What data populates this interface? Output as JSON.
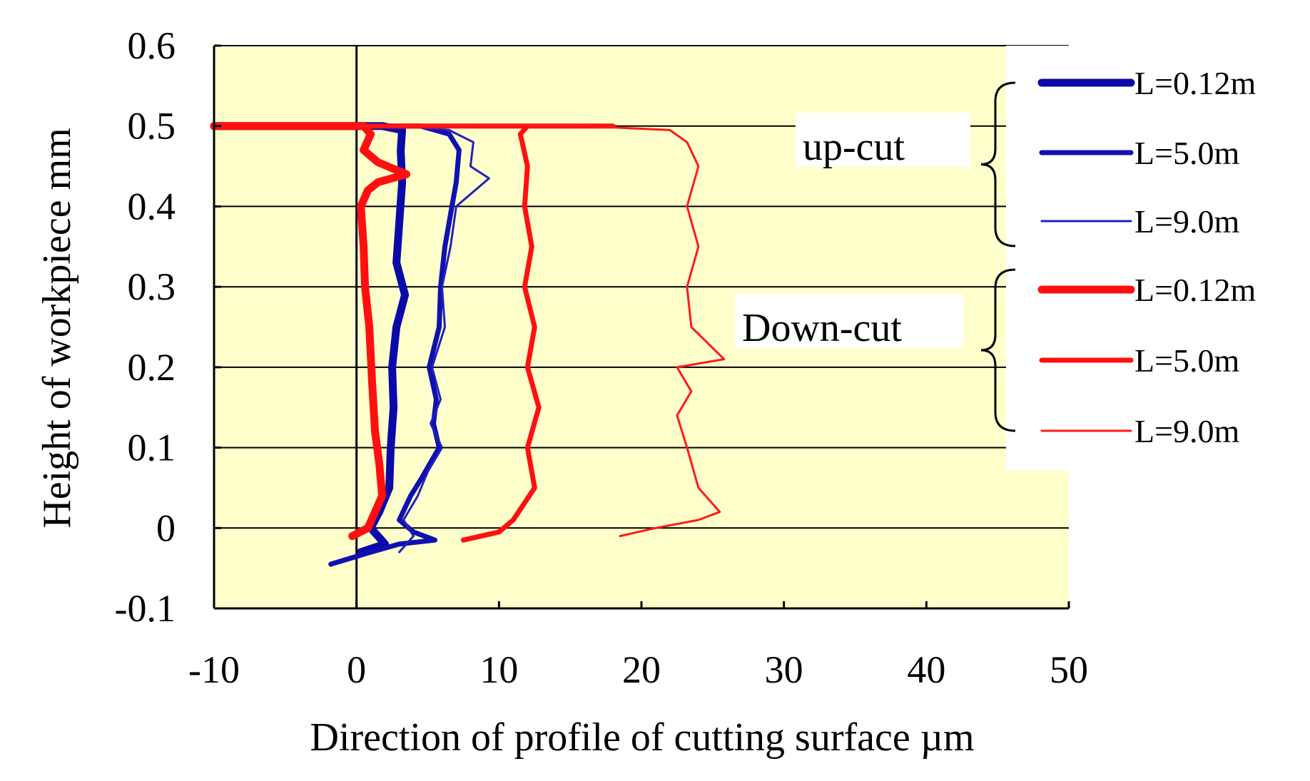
{
  "chart_data": {
    "type": "line",
    "title": "",
    "xlabel": "Direction of profile of cutting surface  µm",
    "ylabel": "Height of workpiece  mm",
    "xlim": [
      -10,
      50
    ],
    "ylim": [
      -0.1,
      0.6
    ],
    "x_ticks": [
      "-10",
      "0",
      "10",
      "20",
      "30",
      "40",
      "50"
    ],
    "y_ticks": [
      "0.6",
      "0.5",
      "0.4",
      "0.3",
      "0.2",
      "0.1",
      "0",
      "-0.1"
    ],
    "grid": "horizontal",
    "plot_background": "#ffffcc",
    "legend_groups": [
      {
        "label": "up-cut",
        "color": "#0000aa"
      },
      {
        "label": "Down-cut",
        "color": "#ff0000"
      }
    ],
    "series": [
      {
        "name": "L=0.12m",
        "group": "up-cut",
        "color": "#0a0aa8",
        "weight": "thick",
        "points": [
          [
            0.3,
            -0.03
          ],
          [
            2.0,
            -0.02
          ],
          [
            1.0,
            0.0
          ],
          [
            1.6,
            0.02
          ],
          [
            2.3,
            0.05
          ],
          [
            2.4,
            0.1
          ],
          [
            2.6,
            0.15
          ],
          [
            2.5,
            0.2
          ],
          [
            2.8,
            0.25
          ],
          [
            3.4,
            0.29
          ],
          [
            2.8,
            0.33
          ],
          [
            3.0,
            0.38
          ],
          [
            3.2,
            0.43
          ],
          [
            3.1,
            0.47
          ],
          [
            3.2,
            0.495
          ],
          [
            1.8,
            0.5
          ],
          [
            0,
            0.5
          ],
          [
            -10,
            0.5
          ]
        ]
      },
      {
        "name": "L=5.0m",
        "group": "up-cut",
        "color": "#1010b0",
        "weight": "medium",
        "points": [
          [
            -1.8,
            -0.045
          ],
          [
            1.0,
            -0.03
          ],
          [
            3.0,
            -0.02
          ],
          [
            5.5,
            -0.015
          ],
          [
            4.0,
            -0.005
          ],
          [
            3.0,
            0.01
          ],
          [
            3.8,
            0.04
          ],
          [
            4.5,
            0.06
          ],
          [
            5.8,
            0.1
          ],
          [
            5.4,
            0.13
          ],
          [
            5.6,
            0.16
          ],
          [
            5.1,
            0.2
          ],
          [
            5.8,
            0.25
          ],
          [
            5.9,
            0.3
          ],
          [
            6.2,
            0.35
          ],
          [
            6.7,
            0.4
          ],
          [
            7.0,
            0.43
          ],
          [
            7.2,
            0.47
          ],
          [
            6.5,
            0.49
          ],
          [
            4.5,
            0.5
          ],
          [
            2.0,
            0.5
          ],
          [
            0,
            0.5
          ]
        ]
      },
      {
        "name": "L=9.0m",
        "group": "up-cut",
        "color": "#2020c0",
        "weight": "thin",
        "points": [
          [
            3.0,
            -0.03
          ],
          [
            4.0,
            -0.01
          ],
          [
            3.3,
            0.01
          ],
          [
            4.3,
            0.04
          ],
          [
            5.0,
            0.07
          ],
          [
            6.0,
            0.1
          ],
          [
            5.2,
            0.13
          ],
          [
            5.9,
            0.16
          ],
          [
            5.3,
            0.2
          ],
          [
            6.2,
            0.25
          ],
          [
            6.0,
            0.3
          ],
          [
            6.6,
            0.35
          ],
          [
            7.0,
            0.4
          ],
          [
            9.3,
            0.435
          ],
          [
            8.0,
            0.45
          ],
          [
            8.2,
            0.48
          ],
          [
            6.5,
            0.495
          ],
          [
            3.5,
            0.5
          ],
          [
            0,
            0.5
          ]
        ]
      },
      {
        "name": "L=0.12m",
        "group": "Down-cut",
        "color": "#ff1010",
        "weight": "thick",
        "points": [
          [
            -0.3,
            -0.01
          ],
          [
            0.8,
            0.0
          ],
          [
            1.8,
            0.04
          ],
          [
            1.6,
            0.08
          ],
          [
            1.3,
            0.12
          ],
          [
            1.1,
            0.18
          ],
          [
            0.9,
            0.25
          ],
          [
            0.6,
            0.3
          ],
          [
            0.5,
            0.35
          ],
          [
            0.3,
            0.4
          ],
          [
            0.8,
            0.42
          ],
          [
            1.5,
            0.43
          ],
          [
            3.5,
            0.44
          ],
          [
            1.5,
            0.455
          ],
          [
            0.5,
            0.47
          ],
          [
            1.0,
            0.49
          ],
          [
            0.5,
            0.5
          ],
          [
            -10,
            0.5
          ]
        ]
      },
      {
        "name": "L=5.0m",
        "group": "Down-cut",
        "color": "#ff1010",
        "weight": "medium",
        "points": [
          [
            7.5,
            -0.015
          ],
          [
            10.0,
            -0.005
          ],
          [
            11.0,
            0.01
          ],
          [
            12.5,
            0.05
          ],
          [
            12.0,
            0.1
          ],
          [
            12.8,
            0.15
          ],
          [
            12.0,
            0.2
          ],
          [
            12.5,
            0.25
          ],
          [
            11.8,
            0.3
          ],
          [
            12.3,
            0.35
          ],
          [
            11.8,
            0.4
          ],
          [
            12.0,
            0.45
          ],
          [
            11.5,
            0.49
          ],
          [
            12.0,
            0.5
          ],
          [
            14.0,
            0.5
          ],
          [
            18.0,
            0.5
          ],
          [
            10.0,
            0.5
          ],
          [
            6.0,
            0.5
          ],
          [
            2.0,
            0.5
          ],
          [
            0,
            0.5
          ]
        ]
      },
      {
        "name": "L=9.0m",
        "group": "Down-cut",
        "color": "#ff1a1a",
        "weight": "thin",
        "points": [
          [
            18.5,
            -0.01
          ],
          [
            21.0,
            0.0
          ],
          [
            24.0,
            0.01
          ],
          [
            25.5,
            0.02
          ],
          [
            24.0,
            0.05
          ],
          [
            23.2,
            0.1
          ],
          [
            22.5,
            0.14
          ],
          [
            23.5,
            0.17
          ],
          [
            22.5,
            0.2
          ],
          [
            25.8,
            0.21
          ],
          [
            23.5,
            0.25
          ],
          [
            23.2,
            0.3
          ],
          [
            24.0,
            0.35
          ],
          [
            23.2,
            0.4
          ],
          [
            24.0,
            0.45
          ],
          [
            23.2,
            0.48
          ],
          [
            22.0,
            0.495
          ],
          [
            16.0,
            0.5
          ],
          [
            10.0,
            0.5
          ],
          [
            4.0,
            0.5
          ],
          [
            0,
            0.5
          ]
        ]
      }
    ],
    "legend_placement": "right"
  }
}
